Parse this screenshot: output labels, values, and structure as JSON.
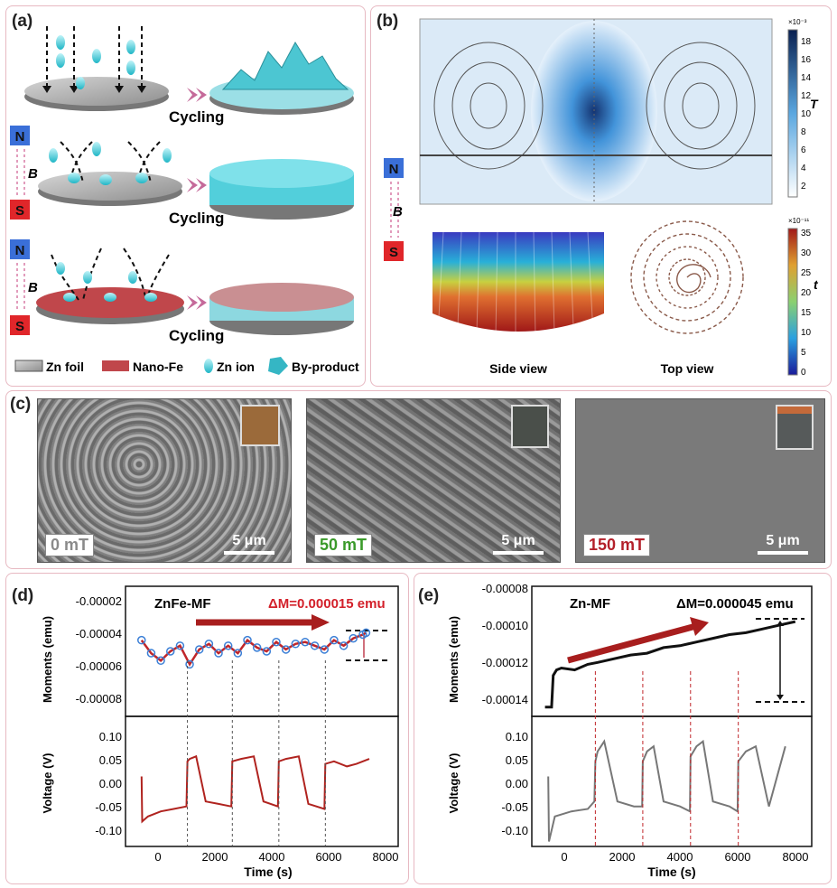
{
  "panel_a": {
    "label": "(a)",
    "cycling": "Cycling",
    "pole_n": "N",
    "pole_s": "S",
    "field": "B",
    "legend": {
      "zn_foil": "Zn foil",
      "nano_fe": "Nano-Fe",
      "zn_ion": "Zn ion",
      "by_product": "By-product"
    }
  },
  "panel_b": {
    "label": "(b)",
    "pole_n": "N",
    "pole_s": "S",
    "field": "B",
    "side_view": "Side view",
    "top_view": "Top view",
    "cbar1": {
      "exp": "×10⁻³",
      "unit": "T",
      "ticks": [
        "18",
        "16",
        "14",
        "12",
        "10",
        "8",
        "6",
        "4",
        "2"
      ]
    },
    "cbar2": {
      "exp": "×10⁻¹¹",
      "unit": "t",
      "ticks": [
        "35",
        "30",
        "25",
        "20",
        "15",
        "10",
        "5",
        "0"
      ]
    }
  },
  "panel_c": {
    "label": "(c)",
    "images": [
      {
        "field": "0 mT",
        "color": "#8a8a8a",
        "scale": "5 μm"
      },
      {
        "field": "50 mT",
        "color": "#3a9a2a",
        "scale": "5 μm"
      },
      {
        "field": "150 mT",
        "color": "#b3202a",
        "scale": "5 μm"
      }
    ]
  },
  "panel_d": {
    "label": "(d)",
    "title": "ZnFe-MF",
    "delta": "ΔM=0.000015 emu",
    "ylabel_top": "Moments (emu)",
    "ylabel_bottom": "Voltage (V)",
    "xlabel": "Time (s)",
    "yticks_top": [
      "-0.00002",
      "-0.00004",
      "-0.00006",
      "-0.00008"
    ],
    "yticks_bottom": [
      "0.10",
      "0.05",
      "0.00",
      "-0.05",
      "-0.10"
    ],
    "xticks": [
      "0",
      "2000",
      "4000",
      "6000",
      "8000"
    ]
  },
  "panel_e": {
    "label": "(e)",
    "title": "Zn-MF",
    "delta": "ΔM=0.000045 emu",
    "ylabel_top": "Moments (emu)",
    "ylabel_bottom": "Voltage (V)",
    "xlabel": "Time (s)",
    "yticks_top": [
      "-0.00008",
      "-0.00010",
      "-0.00012",
      "-0.00014"
    ],
    "yticks_bottom": [
      "0.10",
      "0.05",
      "0.00",
      "-0.05",
      "-0.10"
    ],
    "xticks": [
      "0",
      "2000",
      "4000",
      "6000",
      "8000"
    ]
  },
  "colors": {
    "zn_ion": "#44c9d6",
    "nano_fe": "#c0474b",
    "arrow_red": "#a81e1e",
    "pole_n": "#3a6fd8",
    "pole_s": "#e0262a"
  },
  "chart_data": [
    {
      "type": "line",
      "title": "ZnFe-MF",
      "ylabel": "Moments (emu)",
      "xlabel": "Time (s)",
      "xlim": [
        -500,
        8000
      ],
      "ylim": [
        -8e-05,
        -1e-05
      ],
      "x": [
        0,
        300,
        600,
        900,
        1200,
        1500,
        1800,
        2100,
        2400,
        2700,
        3000,
        3300,
        3600,
        3900,
        4200,
        4500,
        4800,
        5100,
        5400,
        5700,
        6000,
        6300,
        6600,
        6900,
        7000
      ],
      "series": [
        {
          "values": [
            -3.9e-05,
            -4.6e-05,
            -5e-05,
            -4.5e-05,
            -4.2e-05,
            -5.2e-05,
            -4.4e-05,
            -4.1e-05,
            -4.6e-05,
            -4.2e-05,
            -4.6e-05,
            -3.9e-05,
            -4.3e-05,
            -4.5e-05,
            -4e-05,
            -4.4e-05,
            -4.1e-05,
            -4e-05,
            -4.2e-05,
            -4.4e-05,
            -3.9e-05,
            -4.2e-05,
            -3.8e-05,
            -3.6e-05,
            -3.5e-05
          ]
        }
      ]
    },
    {
      "type": "line",
      "ylabel": "Voltage (V)",
      "xlabel": "Time (s)",
      "xlim": [
        -500,
        8000
      ],
      "ylim": [
        -0.13,
        0.13
      ],
      "x": [
        0,
        20,
        200,
        600,
        1000,
        1400,
        1430,
        1500,
        1700,
        2000,
        2400,
        2800,
        2830,
        3100,
        3500,
        3800,
        4250,
        4280,
        4500,
        4900,
        5200,
        5700,
        5730,
        6000,
        6400,
        6700,
        7100
      ],
      "series": [
        {
          "values": [
            0.01,
            -0.08,
            -0.07,
            -0.06,
            -0.055,
            -0.05,
            0.04,
            0.045,
            0.05,
            -0.04,
            -0.045,
            -0.05,
            0.04,
            0.045,
            0.05,
            -0.04,
            -0.05,
            0.04,
            0.045,
            0.05,
            -0.045,
            -0.055,
            0.035,
            0.04,
            0.03,
            0.035,
            0.045
          ]
        }
      ]
    },
    {
      "type": "line",
      "title": "Zn-MF",
      "ylabel": "Moments (emu)",
      "xlabel": "Time (s)",
      "xlim": [
        -500,
        8000
      ],
      "ylim": [
        -0.00015,
        -8e-05
      ],
      "x": [
        -100,
        100,
        150,
        250,
        400,
        800,
        1200,
        1500,
        2000,
        2500,
        3000,
        3500,
        4000,
        4500,
        5000,
        5500,
        6000,
        6500,
        7000,
        7500
      ],
      "series": [
        {
          "values": [
            -0.000145,
            -0.000145,
            -0.000128,
            -0.000125,
            -0.000124,
            -0.000125,
            -0.000122,
            -0.000121,
            -0.000119,
            -0.000117,
            -0.000116,
            -0.000113,
            -0.000112,
            -0.00011,
            -0.000108,
            -0.000106,
            -0.000105,
            -0.000103,
            -0.000101,
            -9.9e-05
          ]
        }
      ]
    },
    {
      "type": "line",
      "ylabel": "Voltage (V)",
      "xlabel": "Time (s)",
      "xlim": [
        -500,
        8000
      ],
      "ylim": [
        -0.13,
        0.13
      ],
      "x": [
        0,
        20,
        200,
        700,
        1200,
        1400,
        1430,
        1500,
        1700,
        2100,
        2600,
        2850,
        2870,
        3000,
        3200,
        3500,
        4000,
        4300,
        4320,
        4500,
        4700,
        5000,
        5500,
        5750,
        5770,
        6000,
        6300,
        6700,
        7200
      ],
      "series": [
        {
          "values": [
            0.01,
            -0.12,
            -0.07,
            -0.06,
            -0.055,
            -0.04,
            0.04,
            0.06,
            0.08,
            -0.04,
            -0.05,
            -0.05,
            0.04,
            0.06,
            0.07,
            -0.04,
            -0.05,
            -0.06,
            0.05,
            0.07,
            0.08,
            -0.04,
            -0.05,
            -0.06,
            0.04,
            0.06,
            0.07,
            -0.05,
            0.07
          ]
        }
      ]
    }
  ]
}
